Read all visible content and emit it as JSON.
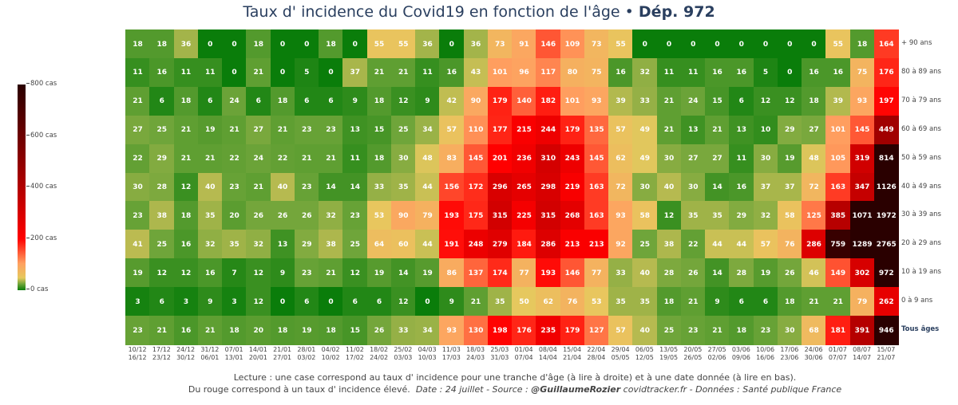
{
  "header": {
    "title_main": "Taux d' incidence du Covid19 en fonction de l'âge",
    "title_sep": " • ",
    "title_dep": "Dép. 972"
  },
  "colorbar": {
    "ticks": [
      "0 cas",
      "200 cas",
      "400 cas",
      "600 cas",
      "800 cas"
    ],
    "tick_values": [
      0,
      200,
      400,
      600,
      800
    ]
  },
  "footer": {
    "line1": "Lecture : une case correspond au taux d' incidence pour une tranche d'âge (à lire à droite) et à une date donnée (à lire en bas).",
    "line2_plain": "Du rouge correspond à un taux d' incidence élevé.",
    "line2_date": "Date : 24 juillet - Source :",
    "line2_author": "@GuillaumeRozier",
    "line2_site": "covidtracker.fr - Données : Santé publique France"
  },
  "chart_data": {
    "type": "heatmap",
    "title": "Taux d' incidence du Covid19 en fonction de l'âge • Dép. 972",
    "colorscale": [
      [
        0,
        "#0a7d0a"
      ],
      [
        25,
        "#6fa53a"
      ],
      [
        50,
        "#e6c85e"
      ],
      [
        100,
        "#ffa060"
      ],
      [
        200,
        "#ff0000"
      ],
      [
        360,
        "#c00000"
      ],
      [
        560,
        "#7a0000"
      ],
      [
        800,
        "#2a0000"
      ]
    ],
    "zlim": [
      0,
      800
    ],
    "x_top": [
      "10/12",
      "17/12",
      "24/12",
      "31/12",
      "07/01",
      "14/01",
      "21/01",
      "28/01",
      "04/02",
      "11/02",
      "18/02",
      "25/02",
      "04/03",
      "11/03",
      "18/03",
      "25/03",
      "01/04",
      "08/04",
      "15/04",
      "22/04",
      "29/04",
      "06/05",
      "13/05",
      "20/05",
      "27/05",
      "03/06",
      "10/06",
      "17/06",
      "24/06",
      "01/07",
      "08/07",
      "15/07"
    ],
    "x_bottom": [
      "16/12",
      "23/12",
      "30/12",
      "06/01",
      "13/01",
      "20/01",
      "27/01",
      "03/02",
      "10/02",
      "17/02",
      "24/02",
      "03/03",
      "10/03",
      "17/03",
      "24/03",
      "31/03",
      "07/04",
      "14/04",
      "21/04",
      "28/04",
      "05/05",
      "12/05",
      "19/05",
      "26/05",
      "02/06",
      "09/06",
      "16/06",
      "23/06",
      "30/06",
      "07/07",
      "14/07",
      "21/07"
    ],
    "rows": [
      {
        "label": "+ 90 ans",
        "bold": false,
        "values": [
          18,
          18,
          36,
          0,
          0,
          18,
          0,
          0,
          18,
          0,
          55,
          55,
          36,
          0,
          36,
          73,
          91,
          146,
          109,
          73,
          55,
          0,
          0,
          0,
          0,
          0,
          0,
          0,
          0,
          55,
          18,
          164
        ]
      },
      {
        "label": "80 à 89 ans",
        "bold": false,
        "values": [
          11,
          16,
          11,
          11,
          0,
          21,
          0,
          5,
          0,
          37,
          21,
          21,
          11,
          16,
          43,
          101,
          96,
          117,
          80,
          75,
          16,
          32,
          11,
          11,
          16,
          16,
          5,
          0,
          16,
          16,
          75,
          176
        ]
      },
      {
        "label": "70 à 79 ans",
        "bold": false,
        "values": [
          21,
          6,
          18,
          6,
          24,
          6,
          18,
          6,
          6,
          9,
          18,
          12,
          9,
          42,
          90,
          179,
          140,
          182,
          101,
          93,
          39,
          33,
          21,
          24,
          15,
          6,
          12,
          12,
          18,
          39,
          93,
          197
        ]
      },
      {
        "label": "60 à 69 ans",
        "bold": false,
        "values": [
          27,
          25,
          21,
          19,
          21,
          27,
          21,
          23,
          23,
          13,
          15,
          25,
          34,
          57,
          110,
          177,
          215,
          244,
          179,
          135,
          57,
          49,
          21,
          13,
          21,
          13,
          10,
          29,
          27,
          101,
          145,
          449
        ]
      },
      {
        "label": "50 à 59 ans",
        "bold": false,
        "values": [
          22,
          29,
          21,
          21,
          22,
          24,
          22,
          21,
          21,
          11,
          18,
          30,
          48,
          83,
          145,
          201,
          236,
          310,
          243,
          145,
          62,
          49,
          30,
          27,
          27,
          11,
          30,
          19,
          48,
          105,
          319,
          814
        ]
      },
      {
        "label": "40 à 49 ans",
        "bold": false,
        "values": [
          30,
          28,
          12,
          40,
          23,
          21,
          40,
          23,
          14,
          14,
          33,
          35,
          44,
          156,
          172,
          296,
          265,
          298,
          219,
          163,
          72,
          30,
          40,
          30,
          14,
          16,
          37,
          37,
          72,
          163,
          347,
          1126
        ]
      },
      {
        "label": "30 à 39 ans",
        "bold": false,
        "values": [
          23,
          38,
          18,
          35,
          20,
          26,
          26,
          26,
          32,
          23,
          53,
          90,
          79,
          193,
          175,
          315,
          225,
          315,
          268,
          163,
          93,
          58,
          12,
          35,
          35,
          29,
          32,
          58,
          125,
          385,
          1071,
          1972
        ]
      },
      {
        "label": "20 à 29 ans",
        "bold": false,
        "values": [
          41,
          25,
          16,
          32,
          35,
          32,
          13,
          29,
          38,
          25,
          64,
          60,
          44,
          191,
          248,
          279,
          184,
          286,
          213,
          213,
          92,
          25,
          38,
          22,
          44,
          44,
          57,
          76,
          286,
          759,
          1289,
          2765
        ]
      },
      {
        "label": "10 à 19 ans",
        "bold": false,
        "values": [
          19,
          12,
          12,
          16,
          7,
          12,
          9,
          23,
          21,
          12,
          19,
          14,
          19,
          86,
          137,
          174,
          77,
          193,
          146,
          77,
          33,
          40,
          28,
          26,
          14,
          28,
          19,
          26,
          46,
          149,
          302,
          972
        ]
      },
      {
        "label": "0 à 9 ans",
        "bold": false,
        "values": [
          3,
          6,
          3,
          9,
          3,
          12,
          0,
          6,
          0,
          6,
          6,
          12,
          0,
          9,
          21,
          35,
          50,
          62,
          76,
          53,
          35,
          35,
          18,
          21,
          9,
          6,
          6,
          18,
          21,
          21,
          79,
          262
        ]
      },
      {
        "label": "Tous âges",
        "bold": true,
        "values": [
          23,
          21,
          16,
          21,
          18,
          20,
          18,
          19,
          18,
          15,
          26,
          33,
          34,
          93,
          130,
          198,
          176,
          235,
          179,
          127,
          57,
          40,
          25,
          23,
          21,
          18,
          23,
          30,
          68,
          181,
          391,
          946
        ]
      }
    ]
  }
}
